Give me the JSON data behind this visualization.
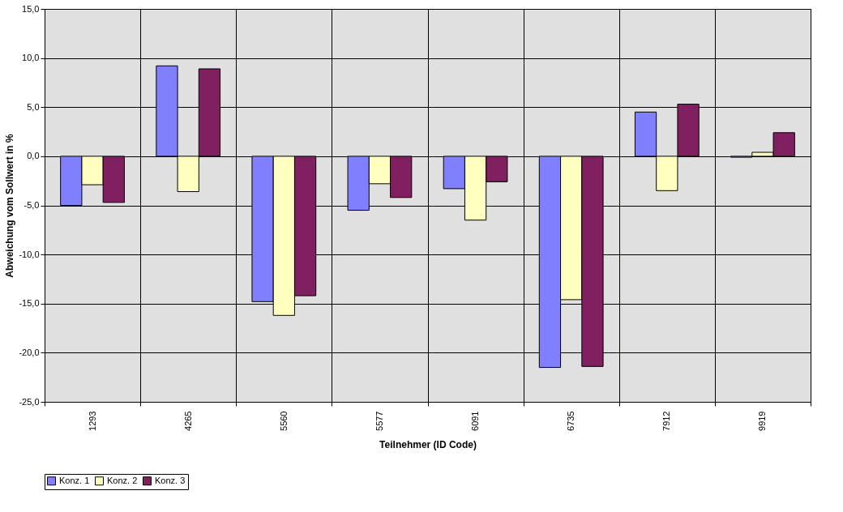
{
  "chart_data": {
    "type": "bar",
    "xlabel": "Teilnehmer (ID Code)",
    "ylabel": "Abweichung vom Sollwert in %",
    "categories": [
      "1293",
      "4265",
      "5560",
      "5577",
      "6091",
      "6735",
      "7912",
      "9919"
    ],
    "series": [
      {
        "name": "Konz. 1",
        "color": "#8080ff",
        "values": [
          -5.0,
          9.2,
          -14.8,
          -5.5,
          -3.3,
          -21.5,
          4.5,
          -0.1
        ]
      },
      {
        "name": "Konz. 2",
        "color": "#ffffc0",
        "values": [
          -2.9,
          -3.6,
          -16.2,
          -2.8,
          -6.5,
          -14.6,
          -3.5,
          0.4
        ]
      },
      {
        "name": "Konz. 3",
        "color": "#802060",
        "values": [
          -4.7,
          8.9,
          -14.2,
          -4.2,
          -2.6,
          -21.4,
          5.3,
          2.4
        ]
      }
    ],
    "ylim": [
      -25,
      15
    ],
    "yticks": [
      {
        "value": -25,
        "label": "-25,0"
      },
      {
        "value": -20,
        "label": "-20,0"
      },
      {
        "value": -15,
        "label": "-15,0"
      },
      {
        "value": -10,
        "label": "-10,0"
      },
      {
        "value": -5,
        "label": "-5,0"
      },
      {
        "value": 0,
        "label": "0,0"
      },
      {
        "value": 5,
        "label": "5,0"
      },
      {
        "value": 10,
        "label": "10,0"
      },
      {
        "value": 15,
        "label": "15,0"
      }
    ],
    "grid": true,
    "legend": "bottom"
  }
}
